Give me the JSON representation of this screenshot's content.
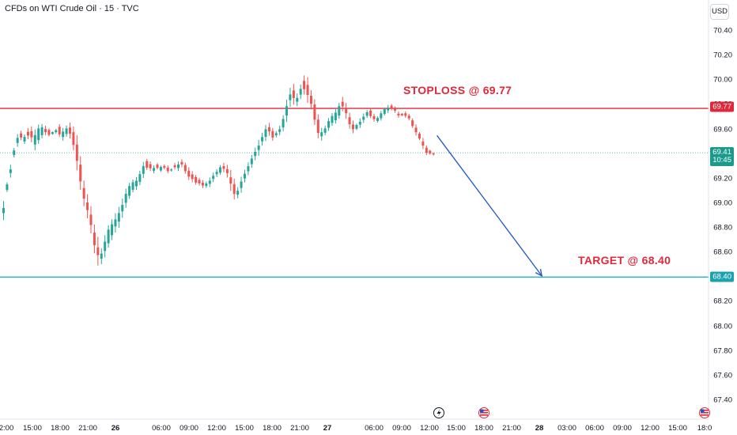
{
  "header": {
    "symbol_title": "CFDs on WTI Crude Oil · 15 · TVC",
    "currency_button": "USD"
  },
  "colors": {
    "up": "#26a69a",
    "down": "#ef5350",
    "stoploss_line": "#e0283a",
    "target_line": "#22b5bf",
    "arrow": "#1f56c4",
    "price_line": "#26a69a"
  },
  "chart_data": {
    "type": "candlestick",
    "y_axis": {
      "ticks": [
        "70.40",
        "70.20",
        "70.00",
        "69.80",
        "69.60",
        "69.40",
        "69.20",
        "69.00",
        "68.80",
        "68.60",
        "68.40",
        "68.20",
        "68.00",
        "67.80",
        "67.60",
        "67.40"
      ],
      "range": [
        67.32,
        70.6
      ]
    },
    "x_axis": {
      "ticks": [
        "2:00",
        "15:00",
        "18:00",
        "21:00",
        "26",
        "06:00",
        "09:00",
        "12:00",
        "15:00",
        "18:00",
        "21:00",
        "27",
        "06:00",
        "09:00",
        "12:00",
        "15:00",
        "18:00",
        "21:00",
        "28",
        "03:00",
        "06:00",
        "09:00",
        "12:00",
        "15:00",
        "18:0"
      ],
      "bold_ticks": [
        "26",
        "27",
        "28"
      ]
    },
    "levels": {
      "stoploss": {
        "price": 69.77,
        "label": "STOPLOSS @ 69.77",
        "badge": "69.77"
      },
      "target": {
        "price": 68.4,
        "label": "TARGET @ 68.40",
        "badge": "68.40"
      },
      "last_price": {
        "price": 69.41,
        "badge": "69.41",
        "countdown": "10:45"
      }
    },
    "projection_arrow": {
      "from": {
        "bar": 124,
        "price": 69.55
      },
      "to": {
        "bar": 154,
        "price": 68.41
      }
    },
    "event_markers": [
      "lightning-icon",
      "us-flag-icon",
      "us-flag-icon"
    ],
    "price_path": [
      [
        69.0,
        68.88
      ],
      [
        69.16,
        69.1
      ],
      [
        69.3,
        69.22
      ],
      [
        69.44,
        69.38
      ],
      [
        69.55,
        69.47
      ],
      [
        69.58,
        69.52
      ],
      [
        69.55,
        69.49
      ],
      [
        69.6,
        69.53
      ],
      [
        69.61,
        69.51
      ],
      [
        69.58,
        69.45
      ],
      [
        69.62,
        69.5
      ],
      [
        69.63,
        69.54
      ],
      [
        69.62,
        69.56
      ],
      [
        69.6,
        69.55
      ],
      [
        69.58,
        69.56
      ],
      [
        69.6,
        69.57
      ],
      [
        69.63,
        69.55
      ],
      [
        69.6,
        69.52
      ],
      [
        69.62,
        69.55
      ],
      [
        69.64,
        69.54
      ],
      [
        69.6,
        69.45
      ],
      [
        69.52,
        69.3
      ],
      [
        69.35,
        69.14
      ],
      [
        69.16,
        69.0
      ],
      [
        69.05,
        68.9
      ],
      [
        68.95,
        68.78
      ],
      [
        68.8,
        68.62
      ],
      [
        68.7,
        68.52
      ],
      [
        68.62,
        68.52
      ],
      [
        68.72,
        68.58
      ],
      [
        68.8,
        68.66
      ],
      [
        68.85,
        68.72
      ],
      [
        68.9,
        68.78
      ],
      [
        68.95,
        68.82
      ],
      [
        69.02,
        68.9
      ],
      [
        69.1,
        68.98
      ],
      [
        69.15,
        69.05
      ],
      [
        69.18,
        69.1
      ],
      [
        69.2,
        69.12
      ],
      [
        69.25,
        69.16
      ],
      [
        69.32,
        69.22
      ],
      [
        69.35,
        69.28
      ],
      [
        69.33,
        69.27
      ],
      [
        69.3,
        69.25
      ],
      [
        69.32,
        69.28
      ],
      [
        69.3,
        69.26
      ],
      [
        69.31,
        69.28
      ],
      [
        69.3,
        69.25
      ],
      [
        69.28,
        69.26
      ],
      [
        69.32,
        69.28
      ],
      [
        69.33,
        69.27
      ],
      [
        69.35,
        69.3
      ],
      [
        69.32,
        69.25
      ],
      [
        69.28,
        69.2
      ],
      [
        69.25,
        69.18
      ],
      [
        69.22,
        69.16
      ],
      [
        69.2,
        69.15
      ],
      [
        69.18,
        69.13
      ],
      [
        69.17,
        69.13
      ],
      [
        69.2,
        69.14
      ],
      [
        69.24,
        69.18
      ],
      [
        69.27,
        69.22
      ],
      [
        69.3,
        69.24
      ],
      [
        69.32,
        69.26
      ],
      [
        69.3,
        69.22
      ],
      [
        69.25,
        69.12
      ],
      [
        69.18,
        69.05
      ],
      [
        69.12,
        69.05
      ],
      [
        69.2,
        69.1
      ],
      [
        69.26,
        69.18
      ],
      [
        69.32,
        69.24
      ],
      [
        69.38,
        69.3
      ],
      [
        69.44,
        69.36
      ],
      [
        69.5,
        69.4
      ],
      [
        69.56,
        69.48
      ],
      [
        69.62,
        69.52
      ],
      [
        69.64,
        69.56
      ],
      [
        69.6,
        69.52
      ],
      [
        69.58,
        69.54
      ],
      [
        69.62,
        69.56
      ],
      [
        69.7,
        69.6
      ],
      [
        69.82,
        69.68
      ],
      [
        69.92,
        69.8
      ],
      [
        69.95,
        69.82
      ],
      [
        69.88,
        69.8
      ],
      [
        69.95,
        69.86
      ],
      [
        70.02,
        69.9
      ],
      [
        70.0,
        69.84
      ],
      [
        69.9,
        69.78
      ],
      [
        69.82,
        69.66
      ],
      [
        69.7,
        69.55
      ],
      [
        69.6,
        69.52
      ],
      [
        69.62,
        69.56
      ],
      [
        69.68,
        69.6
      ],
      [
        69.72,
        69.64
      ],
      [
        69.75,
        69.66
      ],
      [
        69.8,
        69.7
      ],
      [
        69.85,
        69.76
      ],
      [
        69.8,
        69.7
      ],
      [
        69.72,
        69.62
      ],
      [
        69.66,
        69.58
      ],
      [
        69.64,
        69.6
      ],
      [
        69.68,
        69.62
      ],
      [
        69.72,
        69.66
      ],
      [
        69.75,
        69.7
      ],
      [
        69.76,
        69.7
      ],
      [
        69.72,
        69.67
      ],
      [
        69.7,
        69.66
      ],
      [
        69.74,
        69.68
      ],
      [
        69.77,
        69.72
      ],
      [
        69.79,
        69.74
      ],
      [
        69.8,
        69.76
      ],
      [
        69.78,
        69.74
      ],
      [
        69.74,
        69.7
      ],
      [
        69.73,
        69.71
      ],
      [
        69.74,
        69.7
      ],
      [
        69.72,
        69.68
      ],
      [
        69.68,
        69.62
      ],
      [
        69.63,
        69.56
      ],
      [
        69.57,
        69.52
      ],
      [
        69.52,
        69.45
      ],
      [
        69.46,
        69.4
      ],
      [
        69.43,
        69.4
      ],
      [
        69.41,
        69.39
      ]
    ]
  }
}
